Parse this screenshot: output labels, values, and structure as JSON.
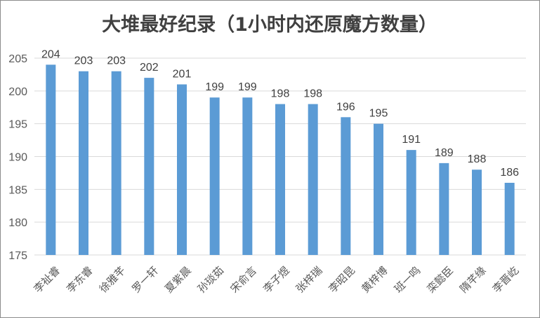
{
  "chart_data": {
    "type": "bar",
    "title": "大堆最好纪录（1小时内还原魔方数量）",
    "xlabel": "",
    "ylabel": "",
    "categories": [
      "李祉睿",
      "李东睿",
      "徐雅芊",
      "罗一轩",
      "夏紫晨",
      "孙琰茹",
      "宋俞言",
      "李子煜",
      "张梓瑞",
      "李昭昆",
      "黄梓博",
      "班一鸣",
      "栾懿臣",
      "隋芊缘",
      "李晋屹"
    ],
    "values": [
      204,
      203,
      203,
      202,
      201,
      199,
      199,
      198,
      198,
      196,
      195,
      191,
      189,
      188,
      186
    ],
    "ylim": [
      175,
      205
    ],
    "yticks": [
      175,
      180,
      185,
      190,
      195,
      200,
      205
    ],
    "grid": true,
    "legend": "none",
    "bar_color": "#5b9bd5"
  }
}
